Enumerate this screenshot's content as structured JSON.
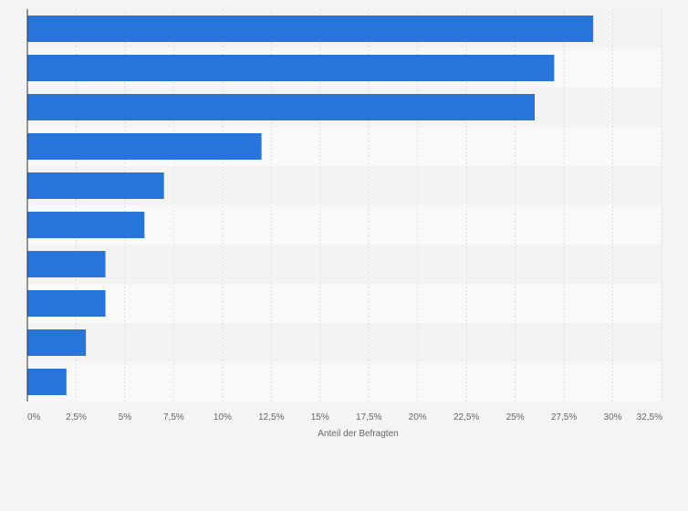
{
  "chart_data": {
    "type": "bar",
    "orientation": "horizontal",
    "categories": [
      "",
      "",
      "",
      "",
      "",
      "",
      "",
      "",
      "",
      ""
    ],
    "values": [
      29,
      27,
      26,
      12,
      7,
      6,
      4,
      4,
      3,
      2
    ],
    "xlabel": "Anteil der Befragten",
    "ylabel": "",
    "xlim": [
      0,
      32.5
    ],
    "x_ticks": [
      0,
      2.5,
      5,
      7.5,
      10,
      12.5,
      15,
      17.5,
      20,
      22.5,
      25,
      27.5,
      30,
      32.5
    ],
    "x_tick_labels": [
      "0%",
      "2,5%",
      "5%",
      "7,5%",
      "10%",
      "12,5%",
      "15%",
      "17,5%",
      "20%",
      "22,5%",
      "25%",
      "27,5%",
      "30%",
      "32,5%"
    ],
    "grid": true,
    "legend": "none",
    "colors": {
      "bar": "#2775db",
      "background": "#f4f4f4",
      "band_light": "#f9f9f9",
      "band_dark": "#f3f3f3",
      "grid": "#dddddd",
      "axis": "#333333",
      "text": "#666666"
    }
  }
}
